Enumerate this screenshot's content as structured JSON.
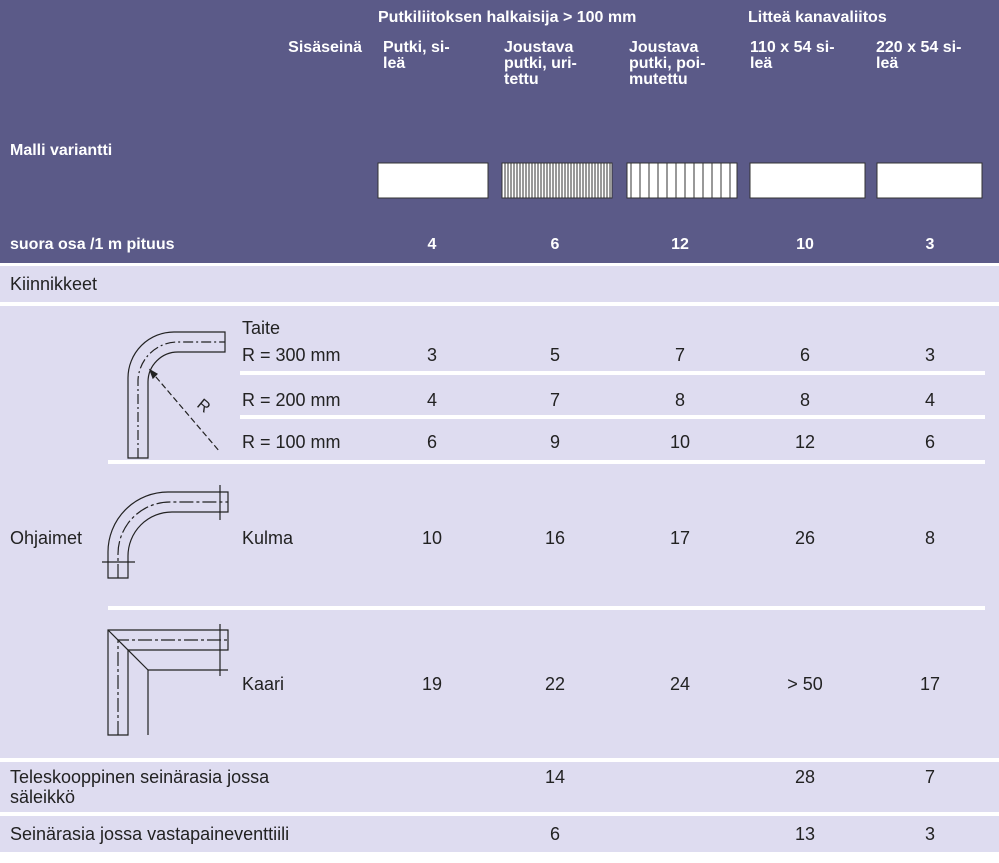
{
  "header": {
    "group1": "Putkiliitoksen halkaisija > 100 mm",
    "group2": "Litteä kanavaliitos",
    "side_label": "Sisäseinä",
    "model_label": "Malli variantti",
    "columns": [
      "Putki, si-\nleä",
      "Joustava\nputki, uri-\ntettu",
      "Joustava\nputki, poi-\nmutettu",
      "110 x 54 si-\nleä",
      "220 x 54 si-\nleä"
    ],
    "row": {
      "label": "suora osa /1 m pituus",
      "values": [
        4,
        6,
        12,
        10,
        3
      ]
    }
  },
  "kiinnikkeet": {
    "label": "Kiinnikkeet"
  },
  "ohjaimet": {
    "label": "Ohjaimet",
    "taite": {
      "label": "Taite",
      "icon_label": "R",
      "rows": [
        {
          "label": "R = 300 mm",
          "values": [
            3,
            5,
            7,
            6,
            3
          ]
        },
        {
          "label": "R = 200 mm",
          "values": [
            4,
            7,
            8,
            8,
            4
          ]
        },
        {
          "label": "R = 100 mm",
          "values": [
            6,
            9,
            10,
            12,
            6
          ]
        }
      ]
    },
    "kulma": {
      "label": "Kulma",
      "values": [
        10,
        16,
        17,
        26,
        8
      ]
    },
    "kaari": {
      "label": "Kaari",
      "values": [
        19,
        22,
        24,
        "> 50",
        17
      ]
    }
  },
  "teleskooppinen": {
    "label": "Teleskooppinen seinärasia jossa\nsäleikkö",
    "values": [
      null,
      14,
      null,
      28,
      7
    ]
  },
  "seinarasia": {
    "label": "Seinärasia jossa vastapaineventtiili",
    "values": [
      null,
      6,
      null,
      13,
      3
    ]
  }
}
